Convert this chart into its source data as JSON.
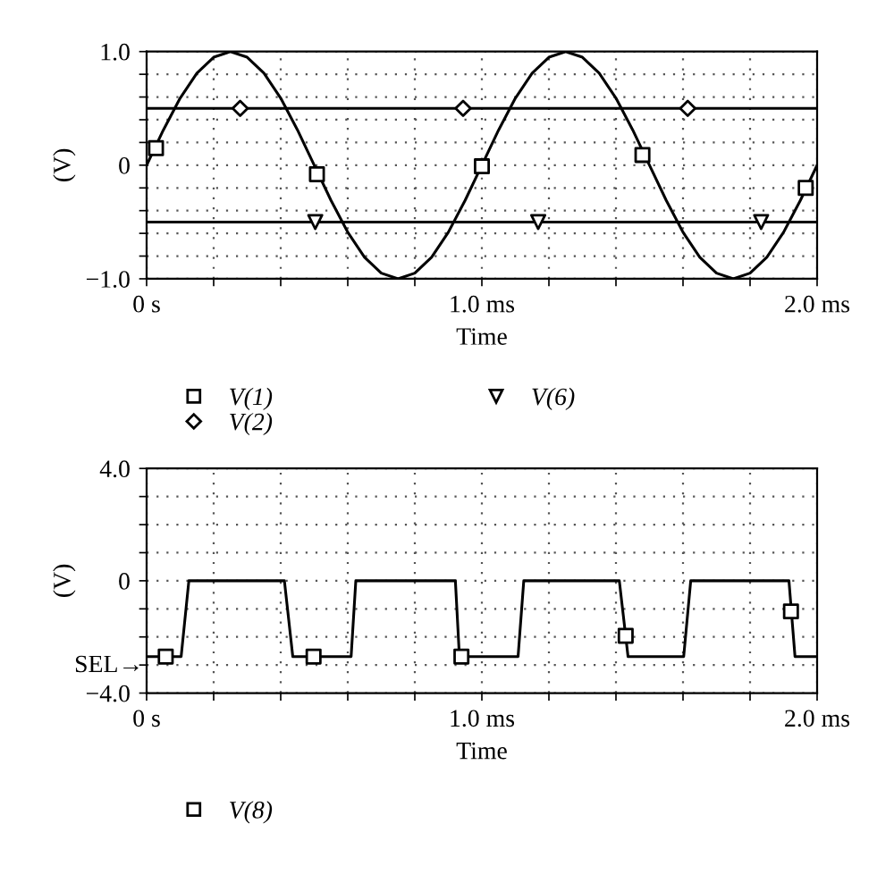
{
  "chart_data": [
    {
      "type": "line",
      "xlabel": "Time",
      "ylabel": "(V)",
      "xlim": [
        0,
        2
      ],
      "ylim": [
        -1,
        1
      ],
      "xticks": [
        {
          "value": 0,
          "label": "0 s"
        },
        {
          "value": 0.2,
          "label": null
        },
        {
          "value": 0.4,
          "label": null
        },
        {
          "value": 0.6,
          "label": null
        },
        {
          "value": 0.8,
          "label": null
        },
        {
          "value": 1,
          "label": "1.0 ms"
        },
        {
          "value": 1.2,
          "label": null
        },
        {
          "value": 1.4,
          "label": null
        },
        {
          "value": 1.6,
          "label": null
        },
        {
          "value": 1.8,
          "label": null
        },
        {
          "value": 2,
          "label": "2.0 ms"
        }
      ],
      "yticks": [
        {
          "value": -1,
          "label": "−1.0"
        },
        {
          "value": -0.8,
          "label": null
        },
        {
          "value": -0.6,
          "label": null
        },
        {
          "value": -0.4,
          "label": null
        },
        {
          "value": -0.2,
          "label": null
        },
        0,
        {
          "value": 0.2,
          "label": null
        },
        {
          "value": 0.4,
          "label": null
        },
        {
          "value": 0.6,
          "label": null
        },
        {
          "value": 0.8,
          "label": null
        },
        {
          "value": 1,
          "label": "1.0"
        }
      ],
      "grid": true,
      "legend": "bottom",
      "series": [
        {
          "color": "#000000",
          "x": [
            0,
            0.05,
            0.1,
            0.15,
            0.2,
            0.25,
            0.3,
            0.35,
            0.4,
            0.45,
            0.5,
            0.55,
            0.6,
            0.65,
            0.7,
            0.75,
            0.8,
            0.85,
            0.9,
            0.95,
            1,
            1.05,
            1.1,
            1.15,
            1.2,
            1.25,
            1.3,
            1.35,
            1.4,
            1.45,
            1.5,
            1.55,
            1.6,
            1.65,
            1.7,
            1.75,
            1.8,
            1.85,
            1.9,
            1.95,
            2
          ],
          "values": [
            0,
            0.31,
            0.59,
            0.81,
            0.95,
            1,
            0.95,
            0.81,
            0.59,
            0.31,
            0,
            -0.31,
            -0.59,
            -0.81,
            -0.95,
            -1,
            -0.95,
            -0.81,
            -0.59,
            -0.31,
            0,
            0.31,
            0.59,
            0.81,
            0.95,
            1,
            0.95,
            0.81,
            0.59,
            0.31,
            0,
            -0.31,
            -0.59,
            -0.81,
            -0.95,
            -1,
            -0.95,
            -0.81,
            -0.59,
            -0.31,
            0
          ]
        },
        {
          "color": "#000000",
          "x": [
            0,
            2
          ],
          "values": [
            0.5,
            0.5
          ]
        },
        {
          "color": "#000000",
          "x": [
            0,
            2
          ],
          "values": [
            -0.5,
            -0.5
          ]
        },
        {
          "type": "scatter",
          "name": "V(1)",
          "color": "#000000",
          "marker": "square",
          "x": [
            0.028,
            0.508,
            1.0,
            1.479,
            1.966
          ],
          "values": [
            0.15,
            -0.08,
            -0.01,
            0.09,
            -0.2
          ]
        },
        {
          "type": "scatter",
          "name": "V(2)",
          "color": "#000000",
          "marker": "diamond",
          "x": [
            0.279,
            0.944,
            1.614
          ],
          "values": [
            0.5,
            0.5,
            0.5
          ]
        },
        {
          "type": "scatter",
          "name": "V(6)",
          "color": "#000000",
          "marker": "triangle",
          "x": [
            0.503,
            1.168,
            1.833
          ],
          "values": [
            -0.5,
            -0.5,
            -0.5
          ]
        }
      ]
    },
    {
      "type": "line",
      "xlabel": "Time",
      "ylabel": "(V)",
      "xlim": [
        0,
        2
      ],
      "ylim": [
        -4,
        4
      ],
      "xticks": [
        {
          "value": 0,
          "label": "0 s"
        },
        {
          "value": 0.2,
          "label": null
        },
        {
          "value": 0.4,
          "label": null
        },
        {
          "value": 0.6,
          "label": null
        },
        {
          "value": 0.8,
          "label": null
        },
        {
          "value": 1,
          "label": "1.0 ms"
        },
        {
          "value": 1.2,
          "label": null
        },
        {
          "value": 1.4,
          "label": null
        },
        {
          "value": 1.6,
          "label": null
        },
        {
          "value": 1.8,
          "label": null
        },
        {
          "value": 2,
          "label": "2.0 ms"
        }
      ],
      "yticks": [
        {
          "value": -4,
          "label": "−4.0"
        },
        {
          "value": -3,
          "label": null
        },
        {
          "value": -2,
          "label": null
        },
        {
          "value": -1,
          "label": null
        },
        0,
        {
          "value": 1,
          "label": null
        },
        {
          "value": 2,
          "label": null
        },
        {
          "value": 3,
          "label": null
        },
        {
          "value": 4,
          "label": "4.0"
        }
      ],
      "grid": true,
      "legend": "bottom",
      "annotations": [
        "SEL→"
      ],
      "series": [
        {
          "color": "#000000",
          "x": [
            0,
            0.103,
            0.126,
            0.411,
            0.436,
            0.61,
            0.624,
            0.921,
            0.933,
            1.108,
            1.125,
            1.41,
            1.436,
            1.602,
            1.623,
            1.916,
            1.934,
            2.0
          ],
          "values": [
            -2.7,
            -2.7,
            0,
            0,
            -2.7,
            -2.7,
            0,
            0,
            -2.7,
            -2.7,
            0,
            0,
            -2.7,
            -2.7,
            0,
            0,
            -2.7,
            -2.7
          ]
        },
        {
          "type": "scatter",
          "name": "V(8)",
          "color": "#000000",
          "marker": "square",
          "x": [
            0.057,
            0.498,
            0.939,
            1.429,
            1.922
          ],
          "values": [
            -2.7,
            -2.7,
            -2.7,
            -1.96,
            -1.09
          ]
        }
      ]
    }
  ]
}
